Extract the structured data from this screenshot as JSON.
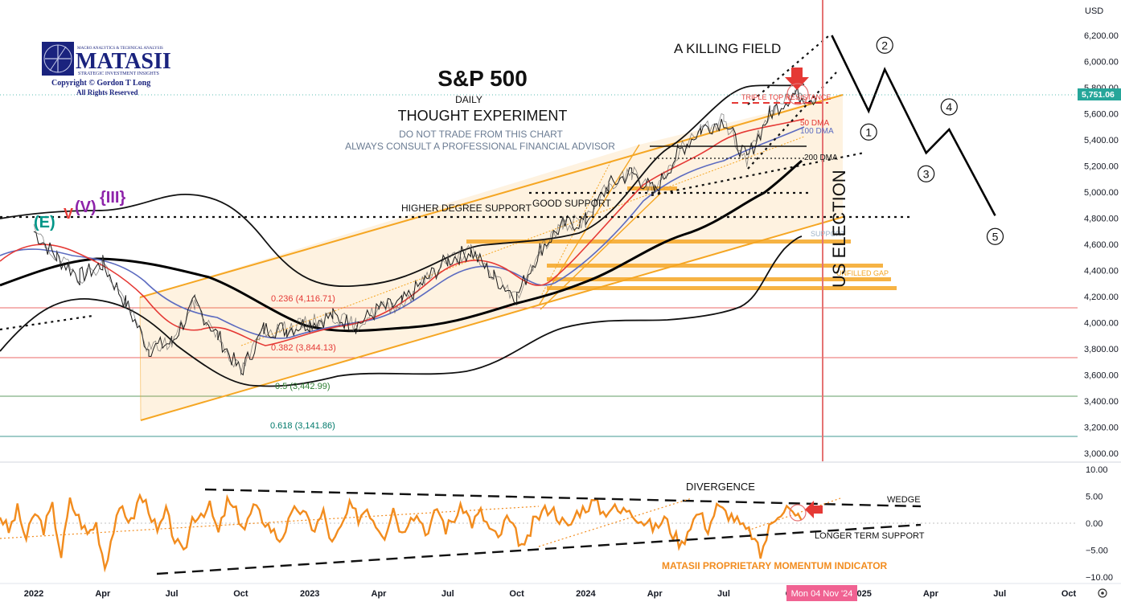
{
  "currency": "USD",
  "title": "S&P 500",
  "timeframe": "DAILY",
  "subtitle": "THOUGHT EXPERIMENT",
  "disclaimer_line1": "DO NOT TRADE FROM THIS CHART",
  "disclaimer_line2": "ALWAYS CONSULT A PROFESSIONAL FINANCIAL ADVISOR",
  "logo": {
    "tagline": "MACRO ANALYTICS & TECHNICAL ANALYSIS",
    "name": "MATASII",
    "sub": "STRATEGIC INVESTMENT INSIGHTS",
    "copyright": "Copyright © Gordon T Long",
    "rights": "All Rights Reserved"
  },
  "last_price": "5,751.06",
  "crosshair_date": "Mon 04 Nov '24",
  "annotations": {
    "killing_field": "A KILLING FIELD",
    "triple_top": "TRIPLE TOP RESISTANCE",
    "dma50": "50 DMA",
    "dma100": "100 DMA",
    "dma200": "200 DMA",
    "good_support": "GOOD SUPPORT",
    "higher_support": "HIGHER DEGREE SUPPORT",
    "support": "SUPPORT",
    "unfilled_gap": "UNFILLED GAP",
    "us_election": "US ELECTION",
    "fib_236": "0.236 (4,116.71)",
    "fib_382": "0.382 (3,844.13)",
    "fib_5": "0.5 (3,442.99)",
    "fib_618": "0.618 (3,141.86)",
    "divergence": "DIVERGENCE",
    "wedge": "WEDGE",
    "longer_support": "LONGER TERM SUPPORT",
    "indicator_name": "MATASII PROPRIETARY MOMENTUM INDICATOR",
    "wave_e": "(E)",
    "wave_v": "V",
    "wave_paren_v": "(V)",
    "wave_iii": "{III}"
  },
  "wave_labels": [
    "1",
    "2",
    "3",
    "4",
    "5"
  ],
  "colors": {
    "price_bars": "#1a1a1a",
    "dma50": "#e53935",
    "dma100": "#5c6bc0",
    "dma200": "#000000",
    "channel": "#f5a623",
    "election_line": "#e57373",
    "momentum": "#f28c1e",
    "last_price_bg": "#26a69a",
    "date_bg": "#f06292"
  },
  "chart_data": [
    {
      "type": "line",
      "name_shown": "S&P 500",
      "y_axis_ticks": [
        3000,
        3200,
        3400,
        3600,
        3800,
        4000,
        4200,
        4400,
        4600,
        4800,
        5000,
        5200,
        5400,
        5600,
        5800,
        6000,
        6200
      ],
      "y_tick_labels": [
        "3,000.00",
        "3,200.00",
        "3,400.00",
        "3,600.00",
        "3,800.00",
        "4,000.00",
        "4,200.00",
        "4,400.00",
        "4,600.00",
        "4,800.00",
        "5,000.00",
        "5,200.00",
        "5,400.00",
        "5,600.00",
        "5,800.00",
        "6,000.00",
        "6,200.00"
      ],
      "ylim": [
        2980,
        6320
      ],
      "x_tick_labels": [
        "2022",
        "Apr",
        "Jul",
        "Oct",
        "2023",
        "Apr",
        "Jul",
        "Oct",
        "2024",
        "Apr",
        "Jul",
        "Oct",
        "2025",
        "Apr",
        "Jul",
        "Oct"
      ],
      "x_tick_months": [
        0,
        3,
        6,
        9,
        12,
        15,
        18,
        21,
        24,
        27,
        30,
        33,
        36,
        39,
        42,
        45
      ],
      "price_path": [
        [
          0,
          4700
        ],
        [
          1,
          4500
        ],
        [
          2,
          4350
        ],
        [
          3,
          4450
        ],
        [
          4,
          4150
        ],
        [
          5,
          3800
        ],
        [
          6,
          3850
        ],
        [
          7,
          4150
        ],
        [
          8,
          3900
        ],
        [
          9,
          3620
        ],
        [
          10,
          3950
        ],
        [
          11,
          3950
        ],
        [
          12,
          4000
        ],
        [
          13,
          4050
        ],
        [
          14,
          3980
        ],
        [
          15,
          4100
        ],
        [
          16,
          4150
        ],
        [
          17,
          4320
        ],
        [
          18,
          4480
        ],
        [
          19,
          4550
        ],
        [
          20,
          4350
        ],
        [
          21,
          4200
        ],
        [
          22,
          4560
        ],
        [
          23,
          4750
        ],
        [
          24,
          4780
        ],
        [
          25,
          5050
        ],
        [
          26,
          5150
        ],
        [
          27,
          5000
        ],
        [
          28,
          5300
        ],
        [
          29,
          5480
        ],
        [
          30,
          5550
        ],
        [
          31,
          5250
        ],
        [
          32,
          5600
        ],
        [
          33,
          5750
        ],
        [
          34,
          5720
        ]
      ],
      "projection_path": [
        [
          34.7,
          6200
        ],
        [
          36.3,
          5620
        ],
        [
          37,
          5940
        ],
        [
          38.8,
          5300
        ],
        [
          39.8,
          5480
        ],
        [
          41.8,
          4820
        ]
      ],
      "fib_levels": [
        4116.71,
        3844.13,
        3442.99,
        3141.86
      ],
      "legend": "none",
      "grid": false
    },
    {
      "type": "line",
      "name_shown": "MATASII PROPRIETARY MOMENTUM INDICATOR",
      "y_axis_ticks": [
        -10,
        -5,
        0,
        5,
        10
      ],
      "y_tick_labels": [
        "−10.00",
        "−5.00",
        "0.00",
        "5.00",
        "10.00"
      ],
      "ylim": [
        -10,
        10
      ],
      "values": [
        1.5,
        -1.5,
        2.5,
        -3,
        2,
        -1,
        3,
        -6,
        4,
        1,
        -2,
        0,
        -8,
        -1,
        3,
        0,
        5,
        3,
        -2,
        2,
        -3,
        -6,
        1,
        2,
        3,
        -2,
        4,
        2,
        -1,
        3,
        1,
        -1,
        -3,
        0,
        3,
        1,
        -1,
        2,
        -4,
        -1,
        3,
        1,
        3,
        0,
        -2,
        3,
        -2,
        2,
        1,
        -2,
        3,
        -1,
        1,
        3,
        0,
        2,
        -1,
        -3,
        1,
        -2,
        -5,
        0,
        2,
        3,
        1,
        -1,
        2,
        3,
        4,
        2,
        3,
        2,
        3,
        1,
        0,
        -1,
        1,
        -2,
        -4,
        0,
        2,
        -1,
        3,
        2,
        1,
        -1,
        -2,
        -6,
        -1,
        2,
        3,
        1,
        2
      ]
    }
  ]
}
